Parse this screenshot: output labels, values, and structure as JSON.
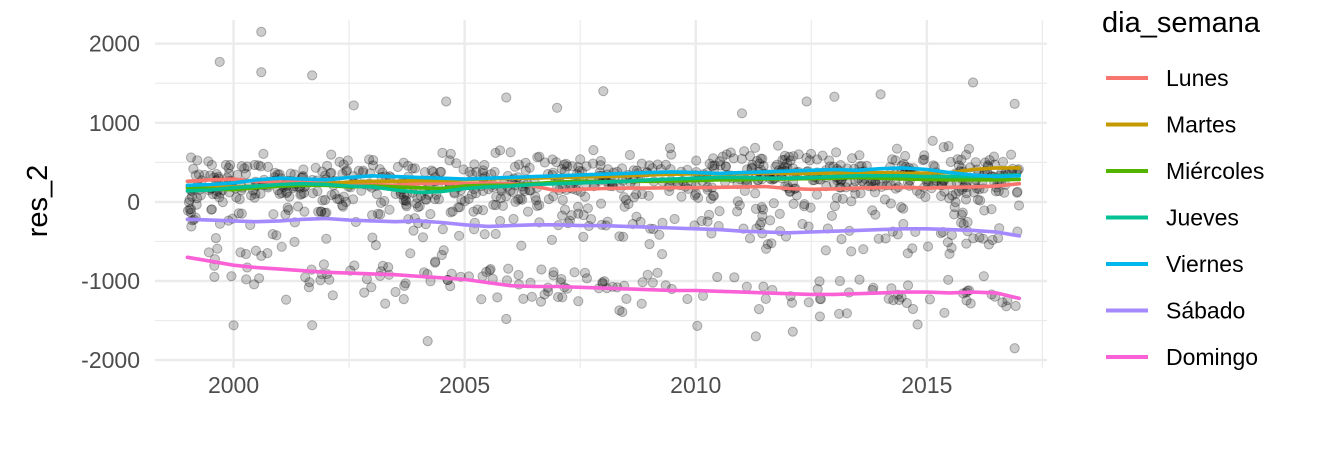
{
  "chart_data": {
    "type": "scatter",
    "title": "",
    "xlabel": "",
    "ylabel": "res_2",
    "xlim": [
      1998.3,
      2017.6
    ],
    "ylim": [
      -2100,
      2300
    ],
    "x_ticks": [
      2000,
      2005,
      2010,
      2015
    ],
    "y_ticks": [
      2000,
      1000,
      0,
      -1000,
      -2000
    ],
    "x_tick_labels": [
      "2000",
      "2005",
      "2010",
      "2015"
    ],
    "y_tick_labels": [
      "2000",
      "1000",
      "0",
      "-1000",
      "-2000"
    ],
    "grid": true,
    "points_color": "#000000",
    "points_opacity": 0.2,
    "x_years": [
      1999.0,
      1999.5,
      2000.0,
      2000.5,
      2001.0,
      2001.5,
      2002.0,
      2002.5,
      2003.0,
      2003.5,
      2004.0,
      2004.5,
      2005.0,
      2005.5,
      2006.0,
      2006.5,
      2007.0,
      2007.5,
      2008.0,
      2008.5,
      2009.0,
      2009.5,
      2010.0,
      2010.5,
      2011.0,
      2011.5,
      2012.0,
      2012.5,
      2013.0,
      2013.5,
      2014.0,
      2014.5,
      2015.0,
      2015.5,
      2016.0,
      2016.5,
      2017.0
    ],
    "outliers": [
      {
        "x": 1999.7,
        "y": 1770
      },
      {
        "x": 2000.6,
        "y": 2150
      },
      {
        "x": 2000.6,
        "y": 1640
      },
      {
        "x": 2001.7,
        "y": 1600
      },
      {
        "x": 2002.6,
        "y": 1220
      },
      {
        "x": 2004.6,
        "y": 1270
      },
      {
        "x": 2005.9,
        "y": 1320
      },
      {
        "x": 2007.0,
        "y": 1190
      },
      {
        "x": 2008.0,
        "y": 1400
      },
      {
        "x": 2011.0,
        "y": 1120
      },
      {
        "x": 2012.4,
        "y": 1270
      },
      {
        "x": 2013.0,
        "y": 1330
      },
      {
        "x": 2014.0,
        "y": 1360
      },
      {
        "x": 2016.0,
        "y": 1510
      },
      {
        "x": 2016.9,
        "y": 1240
      },
      {
        "x": 2004.2,
        "y": -1760
      },
      {
        "x": 2016.9,
        "y": -1850
      },
      {
        "x": 2000.0,
        "y": -1560
      },
      {
        "x": 2001.7,
        "y": -1560
      },
      {
        "x": 2011.3,
        "y": -1700
      },
      {
        "x": 2012.1,
        "y": -1640
      },
      {
        "x": 2014.8,
        "y": -1550
      },
      {
        "x": 2005.9,
        "y": -1480
      }
    ],
    "legend": {
      "title": "dia_semana",
      "position": "right"
    },
    "series": [
      {
        "name": "Lunes",
        "color": "#F8766D",
        "values": [
          260,
          280,
          290,
          260,
          250,
          250,
          240,
          230,
          220,
          210,
          230,
          240,
          230,
          240,
          230,
          200,
          140,
          160,
          170,
          175,
          175,
          180,
          180,
          185,
          190,
          195,
          170,
          160,
          165,
          175,
          180,
          185,
          175,
          185,
          190,
          200,
          230
        ]
      },
      {
        "name": "Martes",
        "color": "#C49A00",
        "values": [
          200,
          195,
          190,
          200,
          210,
          220,
          230,
          250,
          260,
          260,
          270,
          270,
          280,
          290,
          300,
          300,
          310,
          315,
          320,
          330,
          340,
          350,
          355,
          355,
          360,
          365,
          360,
          360,
          365,
          365,
          370,
          360,
          365,
          370,
          410,
          430,
          430
        ]
      },
      {
        "name": "Miércoles",
        "color": "#53B400",
        "values": [
          180,
          165,
          155,
          180,
          200,
          210,
          210,
          190,
          200,
          190,
          180,
          170,
          200,
          210,
          210,
          230,
          250,
          260,
          255,
          260,
          260,
          265,
          270,
          280,
          280,
          290,
          290,
          295,
          300,
          310,
          300,
          290,
          285,
          280,
          280,
          280,
          285
        ]
      },
      {
        "name": "Jueves",
        "color": "#00C094",
        "values": [
          140,
          150,
          180,
          200,
          220,
          230,
          220,
          200,
          190,
          150,
          120,
          130,
          170,
          190,
          200,
          220,
          230,
          240,
          250,
          260,
          280,
          290,
          300,
          310,
          310,
          300,
          300,
          310,
          320,
          330,
          330,
          330,
          320,
          320,
          320,
          330,
          340
        ]
      },
      {
        "name": "Viernes",
        "color": "#00B6EB",
        "values": [
          210,
          220,
          240,
          280,
          300,
          290,
          280,
          310,
          330,
          320,
          310,
          300,
          290,
          300,
          310,
          320,
          330,
          340,
          350,
          360,
          370,
          380,
          370,
          360,
          370,
          380,
          390,
          400,
          410,
          400,
          420,
          430,
          410,
          370,
          340,
          320,
          330
        ]
      },
      {
        "name": "Sábado",
        "color": "#A58AFF",
        "values": [
          -220,
          -230,
          -240,
          -250,
          -240,
          -220,
          -210,
          -230,
          -240,
          -250,
          -240,
          -260,
          -290,
          -310,
          -300,
          -290,
          -290,
          -300,
          -300,
          -310,
          -320,
          -330,
          -340,
          -350,
          -370,
          -380,
          -390,
          -380,
          -370,
          -360,
          -350,
          -340,
          -340,
          -350,
          -360,
          -380,
          -430
        ]
      },
      {
        "name": "Domingo",
        "color": "#FB61D7",
        "values": [
          -700,
          -750,
          -800,
          -830,
          -850,
          -870,
          -890,
          -900,
          -910,
          -920,
          -940,
          -960,
          -980,
          -1020,
          -1060,
          -1070,
          -1070,
          -1080,
          -1090,
          -1100,
          -1110,
          -1120,
          -1120,
          -1130,
          -1140,
          -1150,
          -1160,
          -1170,
          -1170,
          -1160,
          -1150,
          -1140,
          -1140,
          -1150,
          -1140,
          -1150,
          -1220
        ]
      }
    ]
  }
}
